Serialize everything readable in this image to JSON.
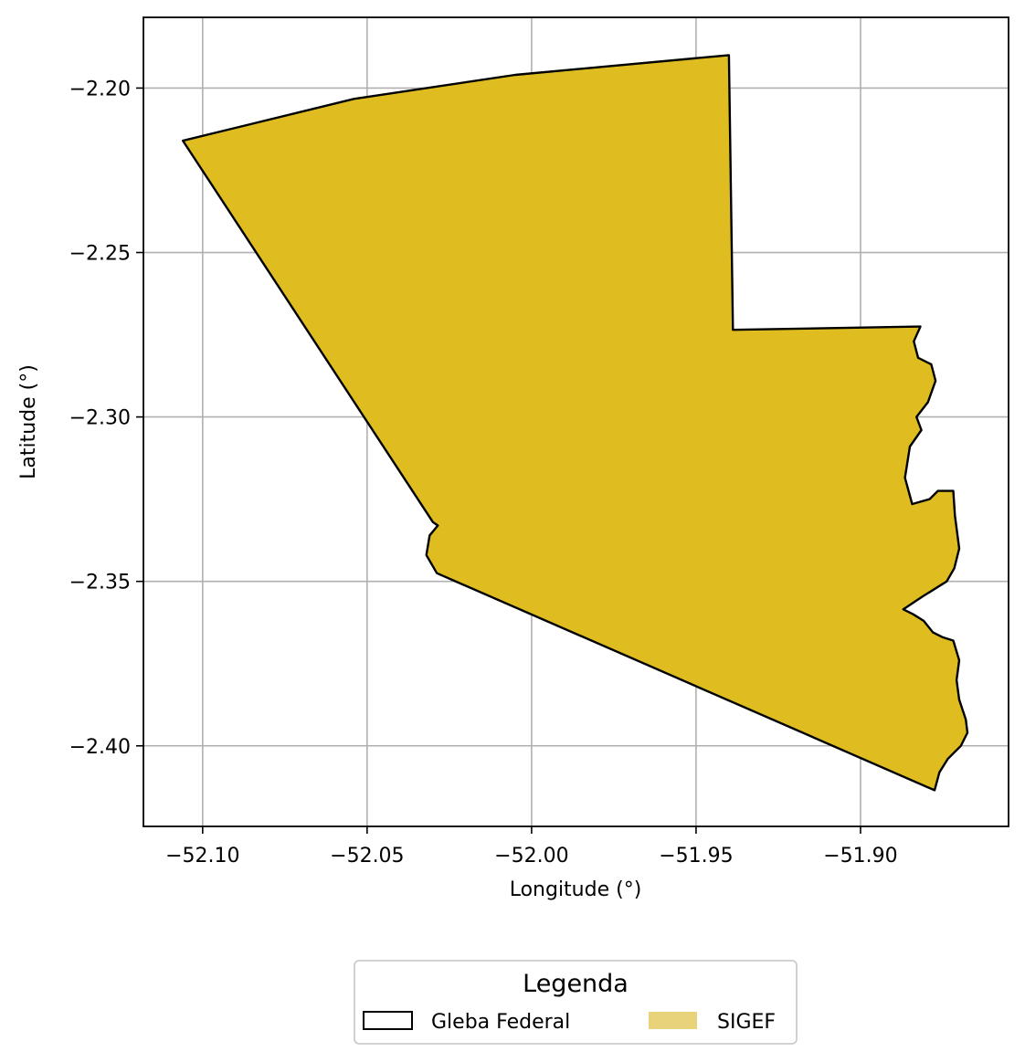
{
  "chart_data": {
    "type": "map",
    "xlabel": "Longitude (°)",
    "ylabel": "Latitude (°)",
    "xlim": [
      -52.118,
      -51.855
    ],
    "ylim": [
      -2.4245,
      -2.1785
    ],
    "grid": true,
    "x_ticks": [
      -52.1,
      -52.05,
      -52.0,
      -51.95,
      -51.9
    ],
    "y_ticks": [
      -2.2,
      -2.25,
      -2.3,
      -2.35,
      -2.4
    ],
    "x_tick_labels": [
      "−52.10",
      "−52.05",
      "−52.00",
      "−51.95",
      "−51.90"
    ],
    "y_tick_labels": [
      "−2.20",
      "−2.25",
      "−2.30",
      "−2.35",
      "−2.40"
    ],
    "legend": {
      "title": "Legenda",
      "position": "bottom-center",
      "entries": [
        {
          "label": "Gleba Federal",
          "fill": "none",
          "edge": "#000000"
        },
        {
          "label": "SIGEF",
          "fill": "#e8d37a",
          "edge": "none"
        }
      ]
    },
    "layers": [
      {
        "name": "SIGEF",
        "fill": "#dfbd20",
        "edge": "none"
      },
      {
        "name": "Gleba Federal",
        "fill": "none",
        "edge": "#000000"
      }
    ],
    "polygon": [
      [
        -52.106,
        -2.216
      ],
      [
        -52.054,
        -2.2033
      ],
      [
        -52.005,
        -2.196
      ],
      [
        -51.94,
        -2.19
      ],
      [
        -51.9388,
        -2.2735
      ],
      [
        -51.8818,
        -2.2725
      ],
      [
        -51.8838,
        -2.277
      ],
      [
        -51.8825,
        -2.282
      ],
      [
        -51.8785,
        -2.284
      ],
      [
        -51.8772,
        -2.289
      ],
      [
        -51.8795,
        -2.2955
      ],
      [
        -51.883,
        -2.3
      ],
      [
        -51.8815,
        -2.304
      ],
      [
        -51.885,
        -2.309
      ],
      [
        -51.8865,
        -2.3185
      ],
      [
        -51.8843,
        -2.3265
      ],
      [
        -51.879,
        -2.325
      ],
      [
        -51.8765,
        -2.3225
      ],
      [
        -51.8718,
        -2.3225
      ],
      [
        -51.8713,
        -2.33
      ],
      [
        -51.87,
        -2.34
      ],
      [
        -51.8715,
        -2.346
      ],
      [
        -51.8738,
        -2.35
      ],
      [
        -51.881,
        -2.3545
      ],
      [
        -51.887,
        -2.3585
      ],
      [
        -51.884,
        -2.36
      ],
      [
        -51.8808,
        -2.362
      ],
      [
        -51.878,
        -2.3655
      ],
      [
        -51.875,
        -2.367
      ],
      [
        -51.8718,
        -2.368
      ],
      [
        -51.87,
        -2.374
      ],
      [
        -51.8708,
        -2.38
      ],
      [
        -51.87,
        -2.386
      ],
      [
        -51.868,
        -2.392
      ],
      [
        -51.8675,
        -2.396
      ],
      [
        -51.8695,
        -2.4
      ],
      [
        -51.8735,
        -2.404
      ],
      [
        -51.876,
        -2.408
      ],
      [
        -51.8775,
        -2.4135
      ],
      [
        -52.0288,
        -2.3475
      ],
      [
        -52.032,
        -2.342
      ],
      [
        -52.031,
        -2.336
      ],
      [
        -52.0285,
        -2.333
      ],
      [
        -52.03,
        -2.332
      ],
      [
        -52.106,
        -2.216
      ]
    ]
  }
}
